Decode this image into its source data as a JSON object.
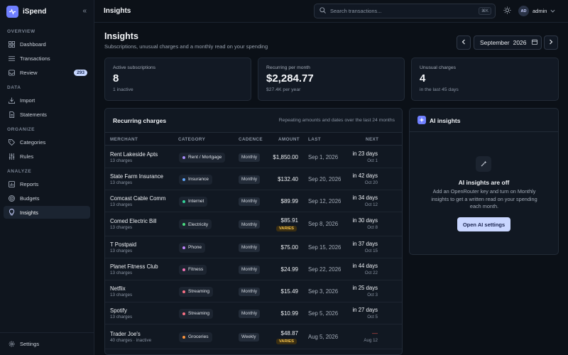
{
  "app": {
    "name": "iSpend"
  },
  "sidebar": {
    "sections": {
      "overview": "OVERVIEW",
      "data": "DATA",
      "organize": "ORGANIZE",
      "analyze": "ANALYZE"
    },
    "items": [
      {
        "label": "Dashboard",
        "icon": "dashboard-icon"
      },
      {
        "label": "Transactions",
        "icon": "list-icon"
      },
      {
        "label": "Review",
        "icon": "inbox-icon",
        "badge": "293"
      },
      {
        "label": "Import",
        "icon": "import-icon"
      },
      {
        "label": "Statements",
        "icon": "document-icon"
      },
      {
        "label": "Categories",
        "icon": "tag-icon"
      },
      {
        "label": "Rules",
        "icon": "sliders-icon"
      },
      {
        "label": "Reports",
        "icon": "chart-icon"
      },
      {
        "label": "Budgets",
        "icon": "target-icon"
      },
      {
        "label": "Insights",
        "icon": "lightbulb-icon",
        "active": true
      }
    ],
    "settings": "Settings"
  },
  "topbar": {
    "title": "Insights",
    "search_placeholder": "Search transactions...",
    "shortcut": "⌘K",
    "user_initials": "AD",
    "username": "admin"
  },
  "page": {
    "title": "Insights",
    "subtitle": "Subscriptions, unusual charges and a monthly read on your spending",
    "month": "September",
    "year": "2026"
  },
  "stats": [
    {
      "label": "Active subscriptions",
      "value": "8",
      "note": "1 inactive"
    },
    {
      "label": "Recurring per month",
      "value": "$2,284.77",
      "note": "$27.4K per year"
    },
    {
      "label": "Unusual charges",
      "value": "4",
      "note": "in the last 45 days"
    }
  ],
  "recurring": {
    "title": "Recurring charges",
    "note": "Repeating amounts and dates over the last 24 months",
    "headers": {
      "merchant": "MERCHANT",
      "category": "CATEGORY",
      "cadence": "CADENCE",
      "amount": "AMOUNT",
      "last": "LAST",
      "next": "NEXT"
    },
    "rows": [
      {
        "merchant": "Rent Lakeside Apts",
        "charges": "13 charges",
        "category": "Rent / Mortgage",
        "color": "#a78bfa",
        "cadence": "Monthly",
        "amount": "$1,850.00",
        "varies": "",
        "last": "Sep 1, 2026",
        "next": "in 23 days",
        "next_date": "Oct 1"
      },
      {
        "merchant": "State Farm Insurance",
        "charges": "13 charges",
        "category": "Insurance",
        "color": "#60a5fa",
        "cadence": "Monthly",
        "amount": "$132.40",
        "varies": "",
        "last": "Sep 20, 2026",
        "next": "in 42 days",
        "next_date": "Oct 20"
      },
      {
        "merchant": "Comcast Cable Comm",
        "charges": "13 charges",
        "category": "Internet",
        "color": "#34d399",
        "cadence": "Monthly",
        "amount": "$89.99",
        "varies": "",
        "last": "Sep 12, 2026",
        "next": "in 34 days",
        "next_date": "Oct 12"
      },
      {
        "merchant": "Comed Electric Bill",
        "charges": "13 charges",
        "category": "Electricity",
        "color": "#4ade80",
        "cadence": "Monthly",
        "amount": "$85.91",
        "varies": "VARIES",
        "last": "Sep 8, 2026",
        "next": "in 30 days",
        "next_date": "Oct 8"
      },
      {
        "merchant": "T Postpaid",
        "charges": "13 charges",
        "category": "Phone",
        "color": "#c084fc",
        "cadence": "Monthly",
        "amount": "$75.00",
        "varies": "",
        "last": "Sep 15, 2026",
        "next": "in 37 days",
        "next_date": "Oct 15"
      },
      {
        "merchant": "Planet Fitness Club",
        "charges": "13 charges",
        "category": "Fitness",
        "color": "#f472b6",
        "cadence": "Monthly",
        "amount": "$24.99",
        "varies": "",
        "last": "Sep 22, 2026",
        "next": "in 44 days",
        "next_date": "Oct 22"
      },
      {
        "merchant": "Netflix",
        "charges": "13 charges",
        "category": "Streaming",
        "color": "#fb7185",
        "cadence": "Monthly",
        "amount": "$15.49",
        "varies": "",
        "last": "Sep 3, 2026",
        "next": "in 25 days",
        "next_date": "Oct 3"
      },
      {
        "merchant": "Spotify",
        "charges": "13 charges",
        "category": "Streaming",
        "color": "#fb7185",
        "cadence": "Monthly",
        "amount": "$10.99",
        "varies": "",
        "last": "Sep 5, 2026",
        "next": "in 27 days",
        "next_date": "Oct 5"
      },
      {
        "merchant": "Trader Joe's",
        "charges": "40 charges · inactive",
        "category": "Groceries",
        "color": "#fb923c",
        "cadence": "Weekly",
        "amount": "$48.87",
        "varies": "VARIES",
        "last": "Aug 5, 2026",
        "next": "—",
        "next_date": "Aug 12"
      }
    ]
  },
  "ai": {
    "title": "AI insights",
    "status": "AI insights are off",
    "description": "Add an OpenRouter key and turn on Monthly insights to get a written read on your spending each month.",
    "button": "Open AI settings"
  },
  "colors": {
    "accent": "#6f7fff",
    "button": "#c9d6ff",
    "varies": "#f2c14b",
    "negative": "#e5534b"
  }
}
